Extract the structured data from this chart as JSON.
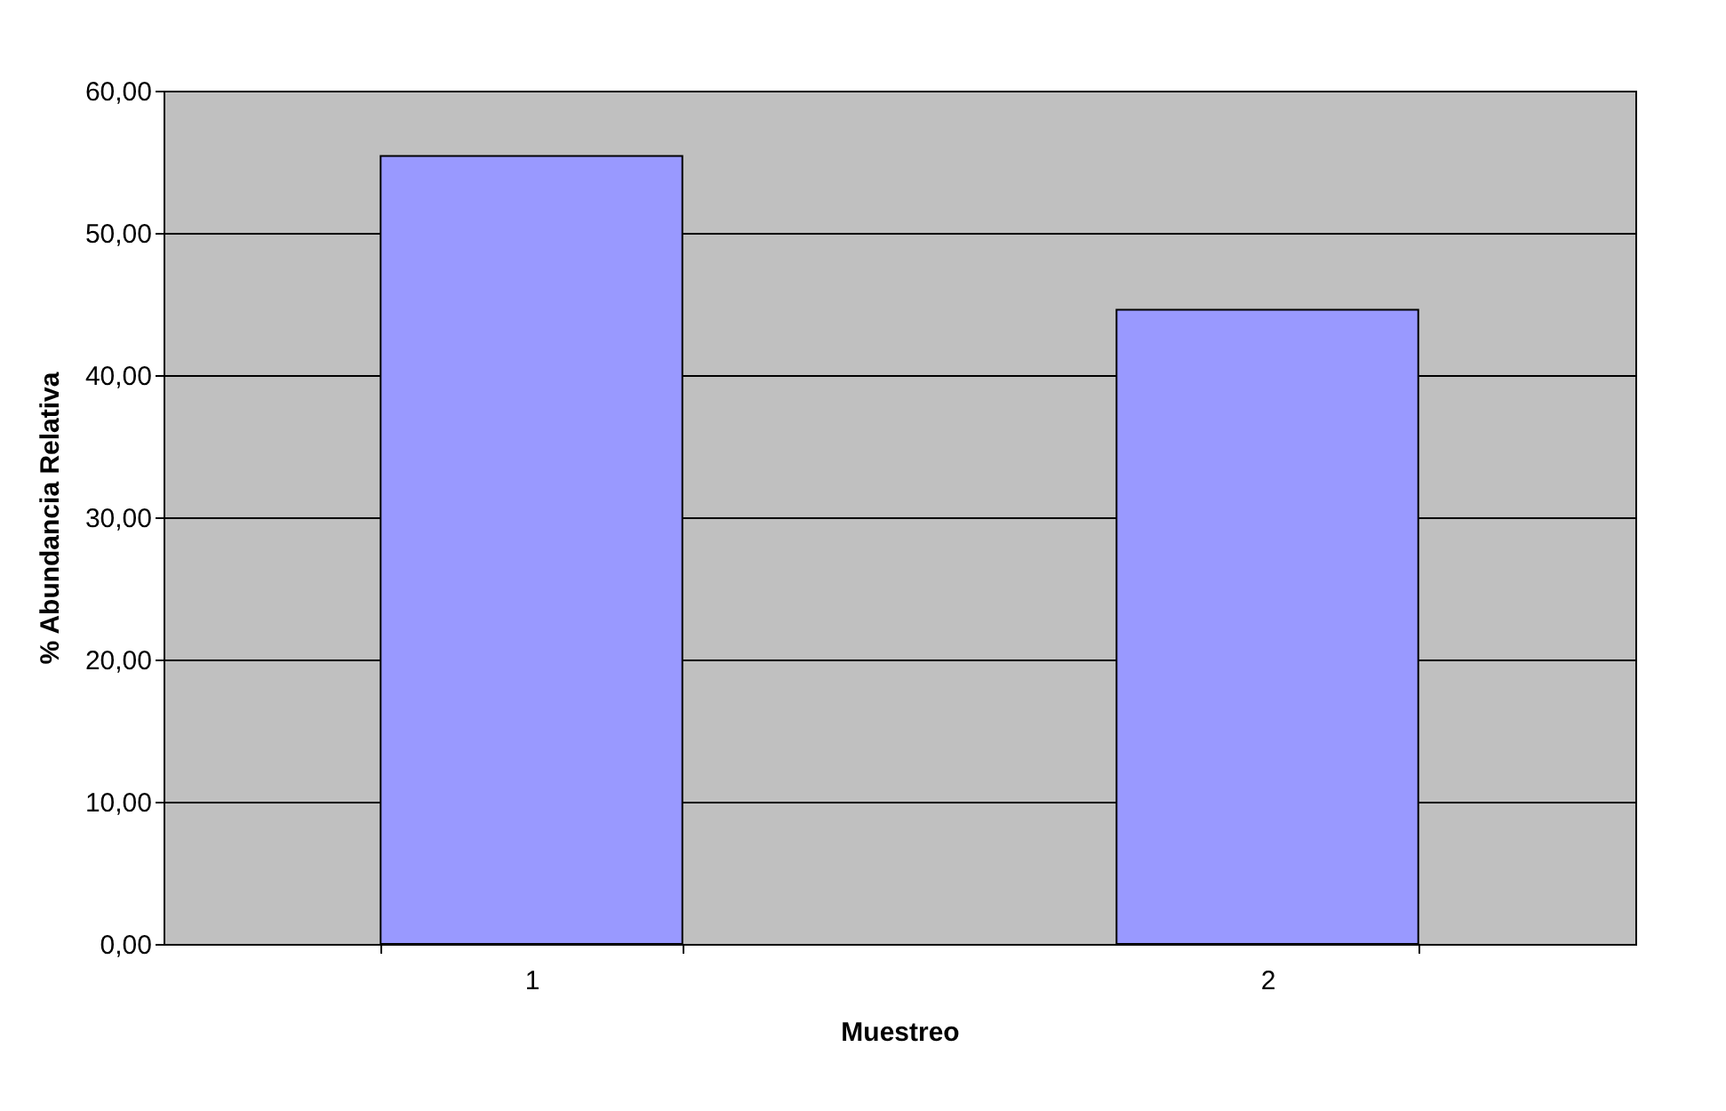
{
  "chart_data": {
    "type": "bar",
    "xlabel": "Muestreo",
    "ylabel": "% Abundancia Relativa",
    "categories": [
      "1",
      "2"
    ],
    "values": [
      55.4,
      44.6
    ],
    "color": "#9999ff",
    "ylim": [
      0,
      60
    ],
    "yticks": [
      {
        "value": 0,
        "label": "0,00"
      },
      {
        "value": 10,
        "label": "10,00"
      },
      {
        "value": 20,
        "label": "20,00"
      },
      {
        "value": 30,
        "label": "30,00"
      },
      {
        "value": 40,
        "label": "40,00"
      },
      {
        "value": 50,
        "label": "50,00"
      },
      {
        "value": 60,
        "label": "60,00"
      }
    ],
    "grid": "y"
  }
}
